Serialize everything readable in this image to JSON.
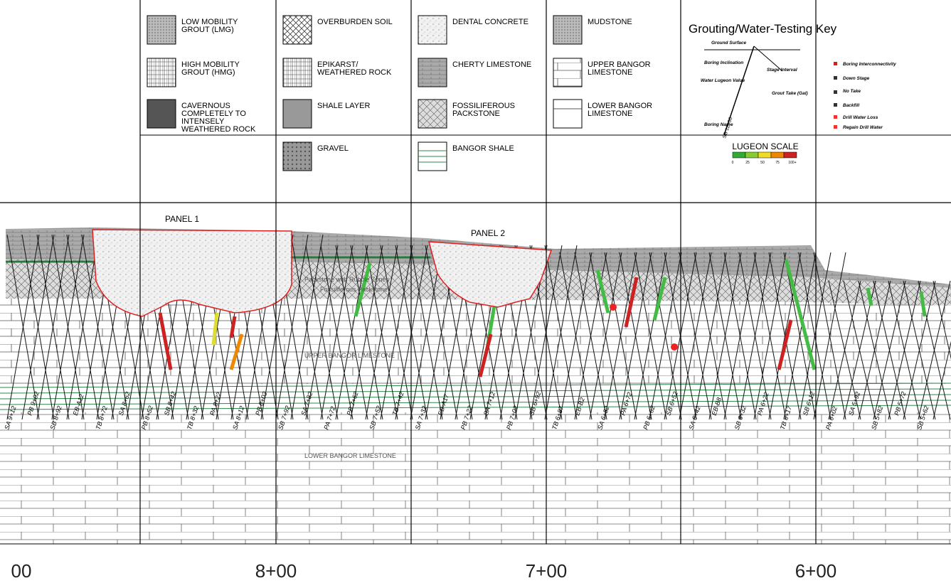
{
  "legend": {
    "items": [
      {
        "label": [
          "LOW MOBILITY",
          "GROUT (LMG)"
        ]
      },
      {
        "label": [
          "HIGH MOBILITY",
          "GROUT (HMG)"
        ]
      },
      {
        "label": [
          "CAVERNOUS",
          "COMPLETELY TO",
          "INTENSELY",
          "WEATHERED ROCK"
        ]
      },
      {
        "label": [
          "OVERBURDEN SOIL"
        ]
      },
      {
        "label": [
          "EPIKARST/",
          "WEATHERED ROCK"
        ]
      },
      {
        "label": [
          "SHALE LAYER"
        ]
      },
      {
        "label": [
          "GRAVEL"
        ]
      },
      {
        "label": [
          "DENTAL CONCRETE"
        ]
      },
      {
        "label": [
          "CHERTY LIMESTONE"
        ]
      },
      {
        "label": [
          "FOSSILIFEROUS",
          "PACKSTONE"
        ]
      },
      {
        "label": [
          "BANGOR SHALE"
        ]
      },
      {
        "label": [
          "MUDSTONE"
        ]
      },
      {
        "label": [
          "UPPER BANGOR",
          "LIMESTONE"
        ]
      },
      {
        "label": [
          "LOWER BANGOR",
          "LIMESTONE"
        ]
      }
    ]
  },
  "key": {
    "title": "Grouting/Water-Testing Key",
    "labels": [
      "Ground Surface",
      "Boring Inclination",
      "Water Lugeon Value",
      "Boring Name",
      "Stage Interval",
      "Grout Take (Gal)",
      "Boring Interconnectivity",
      "Down Stage",
      "No Take",
      "Backfill",
      "Drill Water Loss",
      "Regain Drill Water"
    ],
    "sample": "SB 12+00",
    "lugeon": {
      "title": "LUGEON SCALE",
      "ticks": [
        "0",
        "25",
        "50",
        "75",
        "100+"
      ]
    }
  },
  "section": {
    "panels": [
      "PANEL 1",
      "PANEL 2"
    ],
    "zones": [
      "UPPER BANGOR LIMESTONE",
      "LOWER BANGOR LIMESTONE",
      "Packstone with Rubble Zones",
      "Fossiliferous Packstone"
    ],
    "borings": [
      "SA 9+12",
      "PB 9+02",
      "SB 8+92",
      "EB-A12",
      "TB 8+72",
      "SA 8+62",
      "PB 8+52",
      "SB 8+42",
      "TB 8+32",
      "PA 8+22",
      "SA 8+12",
      "PB 8+02",
      "SB 7+92",
      "SA 7+82",
      "PA 7+72",
      "PB 7+62",
      "SB 7+52",
      "TB 7+42",
      "SA 7+32",
      "EB-A17",
      "PB 7+22",
      "SA 7+12",
      "PB 7+02",
      "SB 6+92",
      "TB 6+87",
      "EB-B2",
      "SA 6+82",
      "PA 6+72",
      "PB 6+62",
      "SB 6+52",
      "SA 6+42",
      "EB-B8",
      "SB 6+32",
      "PA 6+22",
      "TB 6+17",
      "SB 6+12",
      "PA 6+02",
      "SA 5+92",
      "SB 5+82",
      "PB 5+72",
      "SB 5+62"
    ]
  },
  "stations": [
    "00",
    "8+00",
    "7+00",
    "6+00"
  ]
}
